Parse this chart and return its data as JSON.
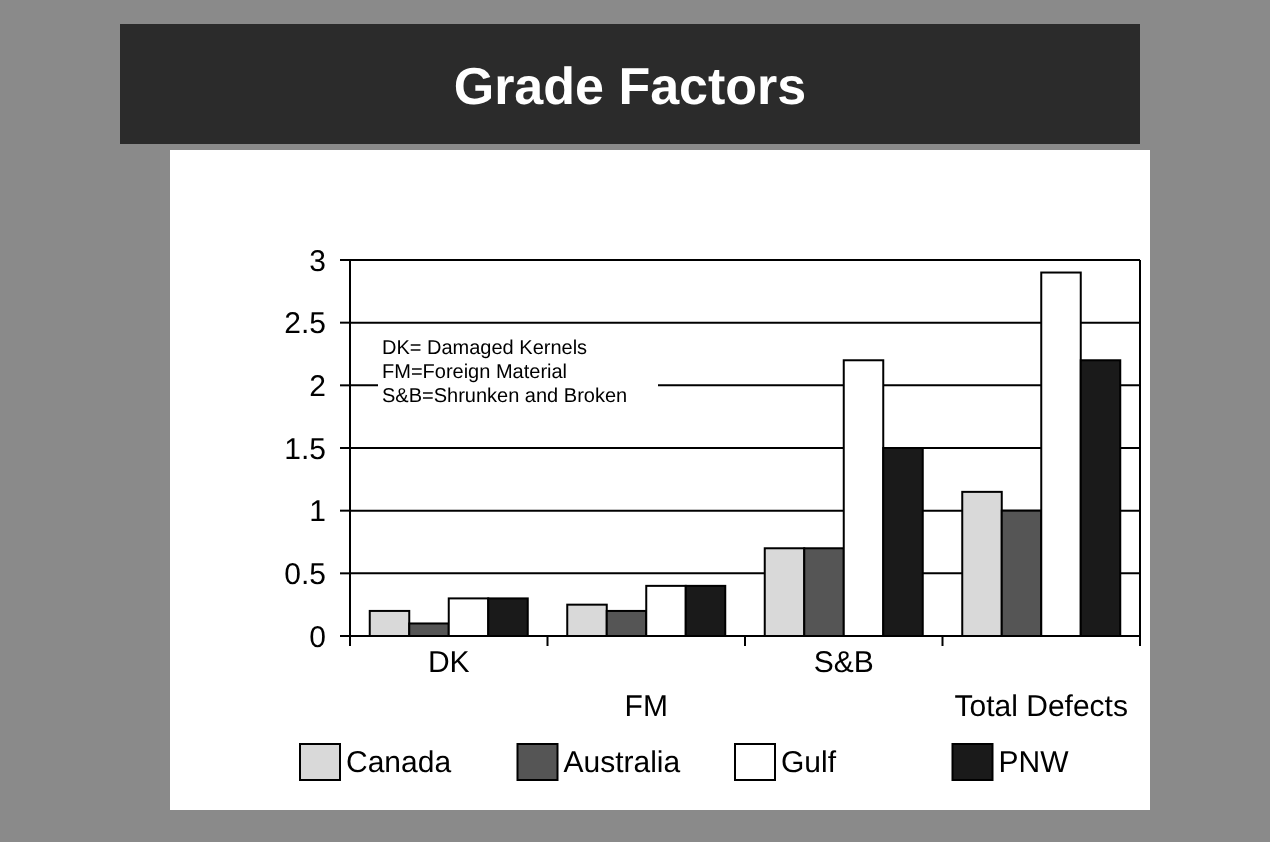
{
  "chart_data": {
    "type": "bar",
    "title": "Grade Factors",
    "categories": [
      "DK",
      "FM",
      "S&B",
      "Total Defects"
    ],
    "series": [
      {
        "name": "Canada",
        "color": "#d9d9d9",
        "values": [
          0.2,
          0.25,
          0.7,
          1.15
        ]
      },
      {
        "name": "Australia",
        "color": "#555555",
        "values": [
          0.1,
          0.2,
          0.7,
          1.0
        ]
      },
      {
        "name": "Gulf",
        "color": "#ffffff",
        "values": [
          0.3,
          0.4,
          2.2,
          2.9
        ]
      },
      {
        "name": "PNW",
        "color": "#1a1a1a",
        "values": [
          0.3,
          0.4,
          1.5,
          2.2
        ]
      }
    ],
    "ylim": [
      0,
      3
    ],
    "yticks": [
      0,
      0.5,
      1,
      1.5,
      2,
      2.5,
      3
    ],
    "grid": "y",
    "legend": "bottom",
    "annotations": [
      "DK= Damaged Kernels",
      "FM=Foreign Material",
      "S&B=Shrunken and Broken"
    ]
  }
}
